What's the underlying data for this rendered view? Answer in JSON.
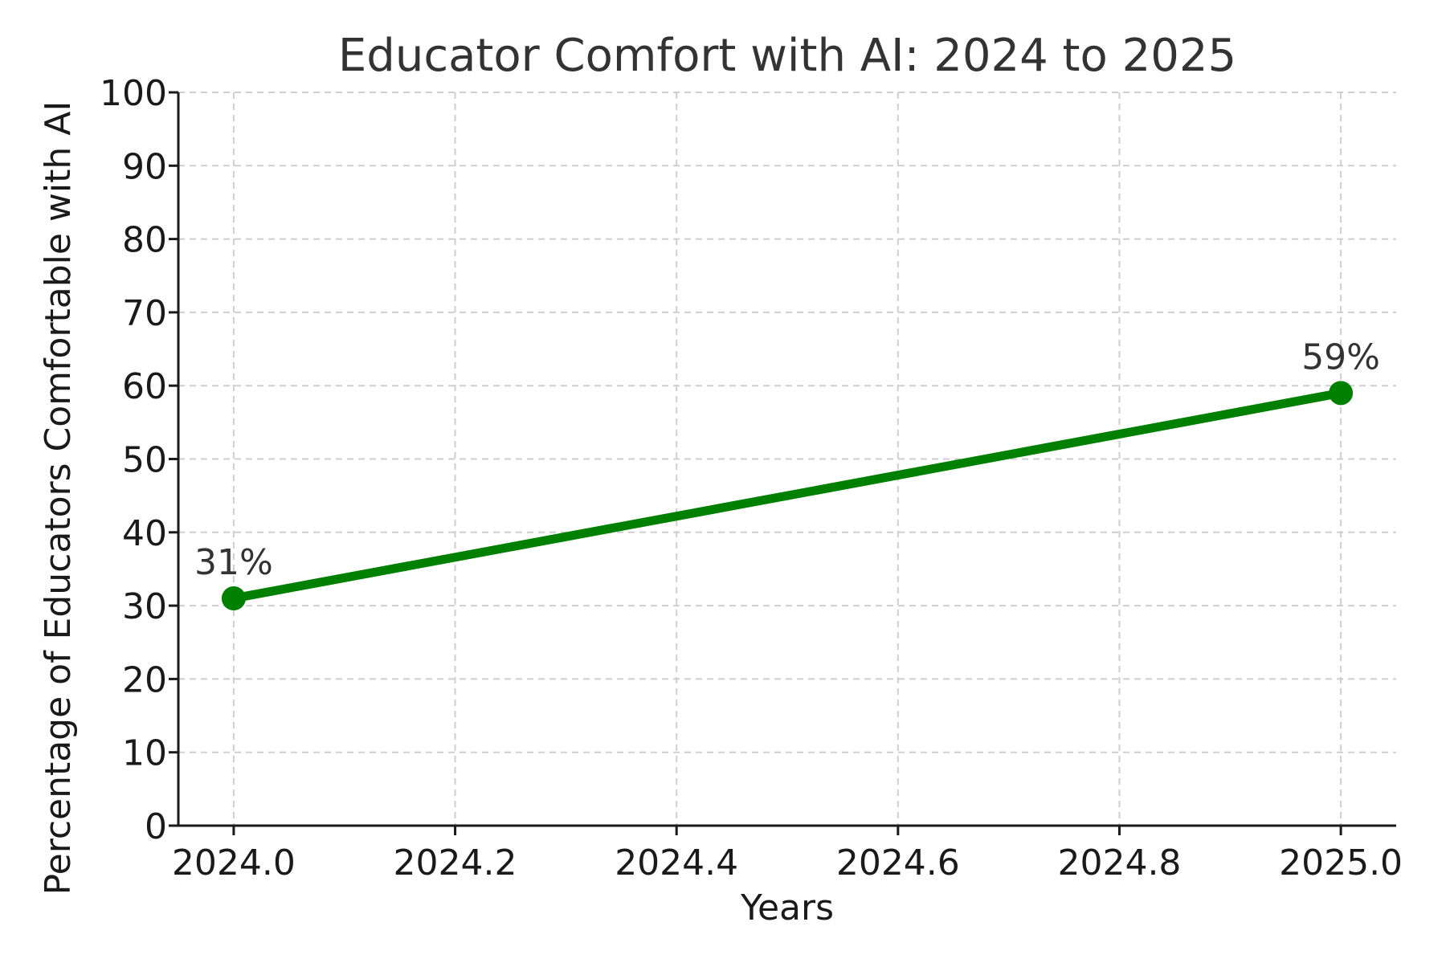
{
  "chart_data": {
    "type": "line",
    "title": "Educator Comfort with AI: 2024 to 2025",
    "xlabel": "Years",
    "ylabel": "Percentage of Educators Comfortable with AI",
    "xlim": [
      2023.95,
      2025.05
    ],
    "ylim": [
      0,
      100
    ],
    "x_ticks": [
      2024.0,
      2024.2,
      2024.4,
      2024.6,
      2024.8,
      2025.0
    ],
    "x_tick_labels": [
      "2024.0",
      "2024.2",
      "2024.4",
      "2024.6",
      "2024.8",
      "2025.0"
    ],
    "y_ticks": [
      0,
      10,
      20,
      30,
      40,
      50,
      60,
      70,
      80,
      90,
      100
    ],
    "y_tick_labels": [
      "0",
      "10",
      "20",
      "30",
      "40",
      "50",
      "60",
      "70",
      "80",
      "90",
      "100"
    ],
    "grid": true,
    "series": [
      {
        "color": "#008000",
        "points": [
          {
            "x": 2024,
            "y": 31,
            "label": "31%"
          },
          {
            "x": 2025,
            "y": 59,
            "label": "59%"
          }
        ]
      }
    ]
  }
}
